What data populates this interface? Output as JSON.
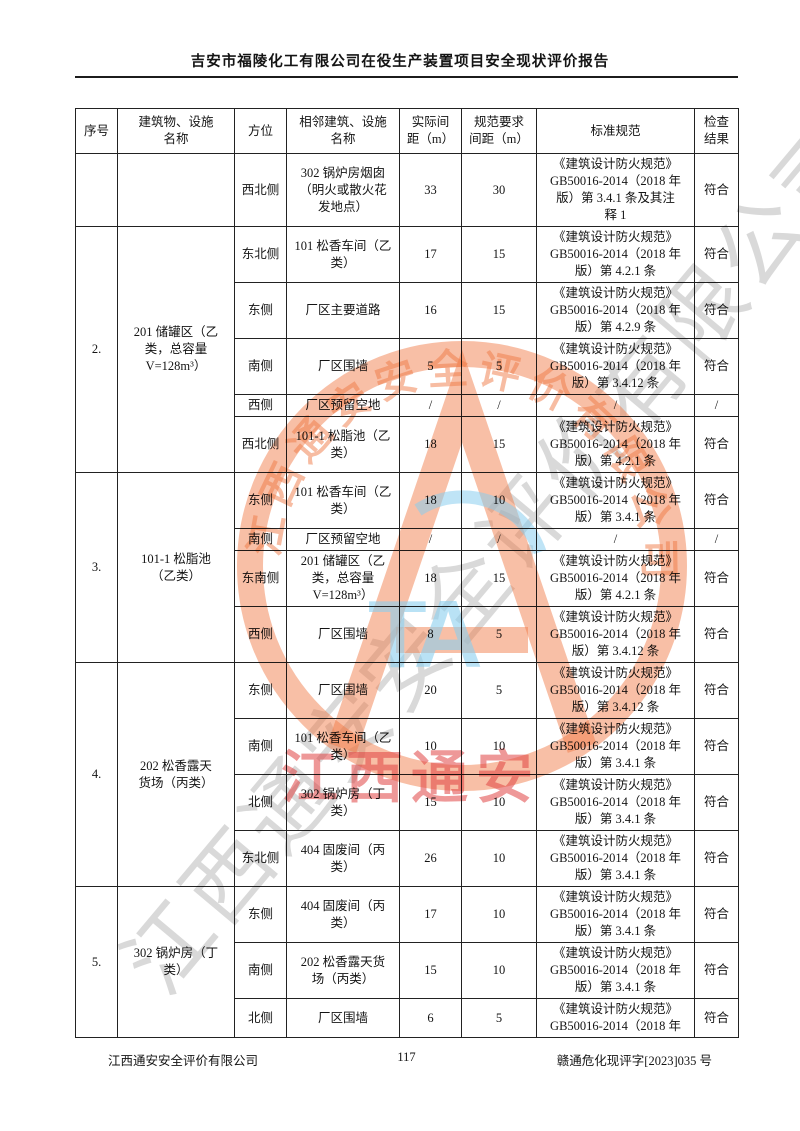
{
  "page": {
    "header_title": "吉安市福陵化工有限公司在役生产装置项目安全现状评价报告",
    "footer": {
      "company": "江西通安安全评价有限公司",
      "page_number": "117",
      "doc_number": "赣通危化现评字[2023]035 号"
    }
  },
  "table": {
    "columns": [
      "序号",
      "建筑物、设施\n名称",
      "方位",
      "相邻建筑、设施\n名称",
      "实际间\n距（m）",
      "规范要求\n间距（m）",
      "标准规范",
      "检查\n结果"
    ],
    "groups": [
      {
        "seq": "",
        "name": "",
        "rows": [
          {
            "direction": "西北侧",
            "adjacent": "302 锅炉房烟囱\n（明火或散火花\n发地点）",
            "actual": "33",
            "required": "30",
            "standard": "《建筑设计防火规范》\nGB50016-2014（2018 年\n版）第 3.4.1 条及其注\n释 1",
            "result": "符合"
          }
        ]
      },
      {
        "seq": "2.",
        "name": "201 储罐区（乙\n类，总容量\nV=128m³）",
        "rows": [
          {
            "direction": "东北侧",
            "adjacent": "101 松香车间（乙\n类）",
            "actual": "17",
            "required": "15",
            "standard": "《建筑设计防火规范》\nGB50016-2014（2018 年\n版）第 4.2.1 条",
            "result": "符合"
          },
          {
            "direction": "东侧",
            "adjacent": "厂区主要道路",
            "actual": "16",
            "required": "15",
            "standard": "《建筑设计防火规范》\nGB50016-2014（2018 年\n版）第 4.2.9 条",
            "result": "符合"
          },
          {
            "direction": "南侧",
            "adjacent": "厂区围墙",
            "actual": "5",
            "required": "5",
            "standard": "《建筑设计防火规范》\nGB50016-2014（2018 年\n版）第 3.4.12 条",
            "result": "符合"
          },
          {
            "direction": "西侧",
            "adjacent": "厂区预留空地",
            "actual": "/",
            "required": "/",
            "standard": "/",
            "result": "/"
          },
          {
            "direction": "西北侧",
            "adjacent": "101-1 松脂池（乙\n类）",
            "actual": "18",
            "required": "15",
            "standard": "《建筑设计防火规范》\nGB50016-2014（2018 年\n版）第 4.2.1 条",
            "result": "符合"
          }
        ]
      },
      {
        "seq": "3.",
        "name": "101-1 松脂池\n（乙类）",
        "rows": [
          {
            "direction": "东侧",
            "adjacent": "101 松香车间（乙\n类）",
            "actual": "18",
            "required": "10",
            "standard": "《建筑设计防火规范》\nGB50016-2014（2018 年\n版）第 3.4.1 条",
            "result": "符合"
          },
          {
            "direction": "南侧",
            "adjacent": "厂区预留空地",
            "actual": "/",
            "required": "/",
            "standard": "/",
            "result": "/"
          },
          {
            "direction": "东南侧",
            "adjacent": "201 储罐区（乙\n类，总容量\nV=128m³）",
            "actual": "18",
            "required": "15",
            "standard": "《建筑设计防火规范》\nGB50016-2014（2018 年\n版）第 4.2.1 条",
            "result": "符合"
          },
          {
            "direction": "西侧",
            "adjacent": "厂区围墙",
            "actual": "8",
            "required": "5",
            "standard": "《建筑设计防火规范》\nGB50016-2014（2018 年\n版）第 3.4.12 条",
            "result": "符合"
          }
        ]
      },
      {
        "seq": "4.",
        "name": "202 松香露天\n货场（丙类）",
        "rows": [
          {
            "direction": "东侧",
            "adjacent": "厂区围墙",
            "actual": "20",
            "required": "5",
            "standard": "《建筑设计防火规范》\nGB50016-2014（2018 年\n版）第 3.4.12 条",
            "result": "符合"
          },
          {
            "direction": "南侧",
            "adjacent": "101 松香车间（乙\n类）",
            "actual": "10",
            "required": "10",
            "standard": "《建筑设计防火规范》\nGB50016-2014（2018 年\n版）第 3.4.1 条",
            "result": "符合"
          },
          {
            "direction": "北侧",
            "adjacent": "302 锅炉房（丁\n类）",
            "actual": "15",
            "required": "10",
            "standard": "《建筑设计防火规范》\nGB50016-2014（2018 年\n版）第 3.4.1 条",
            "result": "符合"
          },
          {
            "direction": "东北侧",
            "adjacent": "404 固废间（丙\n类）",
            "actual": "26",
            "required": "10",
            "standard": "《建筑设计防火规范》\nGB50016-2014（2018 年\n版）第 3.4.1 条",
            "result": "符合"
          }
        ]
      },
      {
        "seq": "5.",
        "name": "302 锅炉房（丁\n类）",
        "rows": [
          {
            "direction": "东侧",
            "adjacent": "404 固废间（丙\n类）",
            "actual": "17",
            "required": "10",
            "standard": "《建筑设计防火规范》\nGB50016-2014（2018 年\n版）第 3.4.1 条",
            "result": "符合"
          },
          {
            "direction": "南侧",
            "adjacent": "202 松香露天货\n场（丙类）",
            "actual": "15",
            "required": "10",
            "standard": "《建筑设计防火规范》\nGB50016-2014（2018 年\n版）第 3.4.1 条",
            "result": "符合"
          },
          {
            "direction": "北侧",
            "adjacent": "厂区围墙",
            "actual": "6",
            "required": "5",
            "standard": "《建筑设计防火规范》\nGB50016-2014（2018 年",
            "result": "符合"
          }
        ]
      }
    ]
  },
  "watermark": {
    "gray_text": "江西通安安全评价有限公司",
    "red_text": "江西通安",
    "blue_text": "TA",
    "stamp_arc_text": "江西通安安全评价有限公司",
    "colors": {
      "stamp_orange": "#F07A45",
      "red": "#E04444",
      "blue": "#8ACEEE",
      "gray": "#767676"
    }
  }
}
